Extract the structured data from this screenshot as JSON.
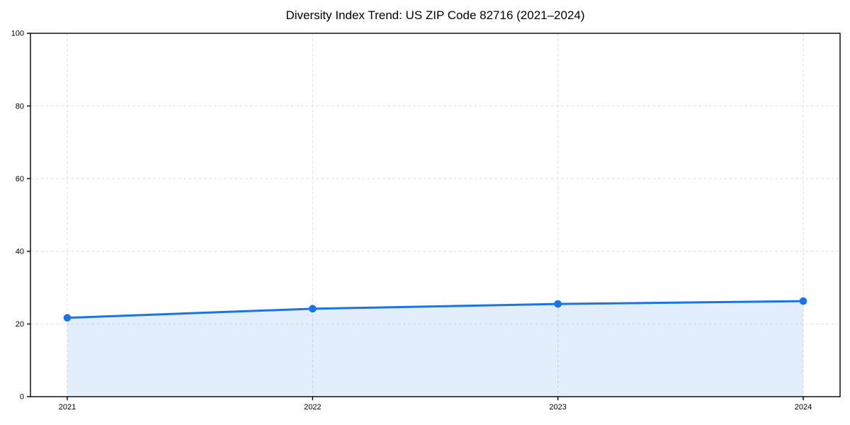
{
  "chart_data": {
    "type": "line",
    "title": "Diversity Index Trend: US ZIP Code 82716 (2021–2024)",
    "categories": [
      "2021",
      "2022",
      "2023",
      "2024"
    ],
    "series": [
      {
        "name": "Diversity Index",
        "values": [
          21.7,
          24.2,
          25.5,
          26.3
        ]
      }
    ],
    "xlabel": "",
    "ylabel": "",
    "ylim": [
      0,
      100
    ],
    "yticks": [
      0,
      20,
      40,
      60,
      80,
      100
    ],
    "grid": true,
    "grid_style": "dashed",
    "legend": false,
    "line_color": "#1a73e8",
    "marker": "circle",
    "marker_color": "#1a73e8",
    "fill": "area",
    "fill_color": "#1a73e8",
    "fill_opacity": 0.12,
    "grid_color": "#dedede",
    "axis_color": "#000000",
    "background": "#ffffff"
  }
}
